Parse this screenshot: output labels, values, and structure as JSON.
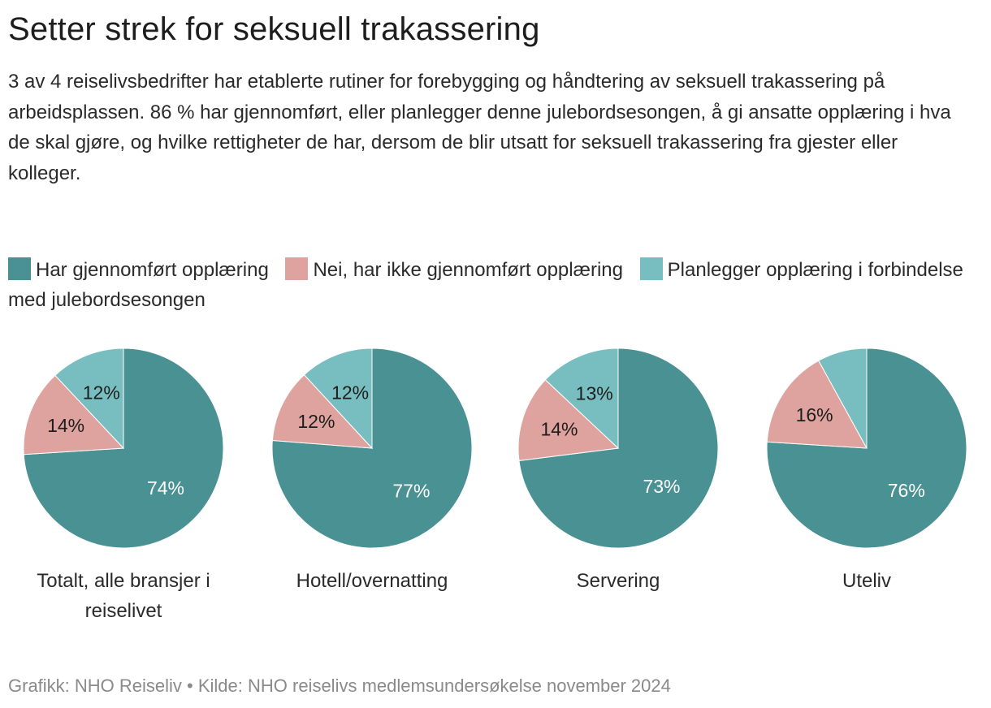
{
  "title": "Setter strek for seksuell trakassering",
  "subtitle": "3 av 4 reiselivsbedrifter har etablerte rutiner for forebygging og håndtering av seksuell trakassering på arbeidsplassen. 86 % har gjennomført, eller planlegger denne julebordsesongen, å gi ansatte opplæring i hva de skal gjøre, og hvilke rettigheter de har, dersom de blir utsatt for seksuell trakassering fra gjester eller kolleger.",
  "footer": "Grafikk: NHO Reiseliv • Kilde: NHO reiselivs medlemsundersøkelse november 2024",
  "chart_data": {
    "type": "pie",
    "legend_position": "top",
    "series": [
      {
        "name": "Har gjennomført opplæring",
        "color": "#4a9193"
      },
      {
        "name": "Nei, har ikke gjennomført opplæring",
        "color": "#dea39e"
      },
      {
        "name": "Planlegger opplæring i forbindelse med julebordsesongen",
        "color": "#78bec0"
      }
    ],
    "pies": [
      {
        "category": "Totalt, alle bransjer i reiselivet",
        "values": [
          74,
          14,
          12
        ],
        "labels": [
          "74%",
          "14%",
          "12%"
        ]
      },
      {
        "category": "Hotell/overnatting",
        "values": [
          77,
          12,
          12
        ],
        "labels": [
          "77%",
          "12%",
          "12%"
        ]
      },
      {
        "category": "Servering",
        "values": [
          73,
          14,
          13
        ],
        "labels": [
          "73%",
          "14%",
          "13%"
        ]
      },
      {
        "category": "Uteliv",
        "values": [
          76,
          16,
          8
        ],
        "labels": [
          "76%",
          "16%",
          ""
        ]
      }
    ]
  }
}
